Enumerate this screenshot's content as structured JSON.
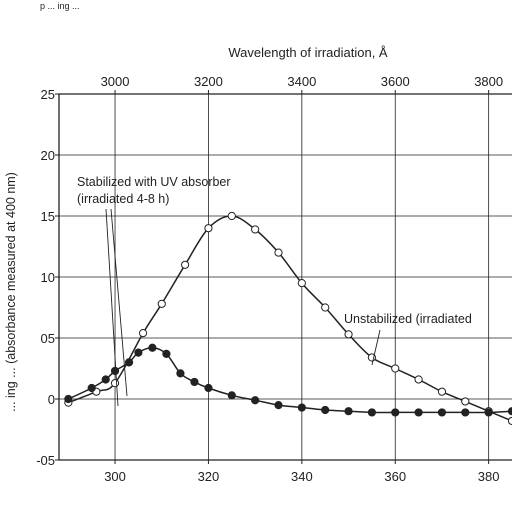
{
  "chart_data": {
    "type": "line",
    "top_caption": "p ... ing ...",
    "x2label": "Wavelength of irradiation, Å",
    "ylabel_partial": "... ing ... (absorbance measured at 400 nm)",
    "xlim": [
      288,
      385
    ],
    "ylim": [
      -5,
      25
    ],
    "x_ticks": [
      "300",
      "320",
      "340",
      "360",
      "380"
    ],
    "x_tick_values": [
      300,
      320,
      340,
      360,
      380
    ],
    "x2_ticks": [
      "3000",
      "3200",
      "3400",
      "3600",
      "3800"
    ],
    "x2_tick_values": [
      3000,
      3200,
      3400,
      3600,
      3800
    ],
    "y_ticks": [
      "25",
      "20",
      "15",
      "10",
      "05",
      "0",
      "-05"
    ],
    "y_tick_values": [
      25,
      20,
      15,
      10,
      5,
      0,
      -5
    ],
    "grid": true,
    "series": [
      {
        "name": "Unstabilized (irradiated",
        "marker": "open-circle",
        "x": [
          290,
          296,
          300,
          306,
          310,
          315,
          320,
          325,
          330,
          335,
          340,
          345,
          350,
          355,
          360,
          365,
          370,
          375,
          380,
          385
        ],
        "y": [
          -0.3,
          0.6,
          1.3,
          5.4,
          7.8,
          11.0,
          14.0,
          15.0,
          13.9,
          12.0,
          9.5,
          7.5,
          5.3,
          3.4,
          2.5,
          1.6,
          0.6,
          -0.2,
          -1.0,
          -1.8
        ]
      },
      {
        "name": "Stabilized with UV absorber (irradiated 4-8 h)",
        "marker": "filled-circle",
        "x": [
          290,
          295,
          298,
          300,
          303,
          305,
          308,
          311,
          314,
          317,
          320,
          325,
          330,
          335,
          340,
          345,
          350,
          355,
          360,
          365,
          370,
          375,
          380,
          385
        ],
        "y": [
          0.0,
          0.9,
          1.6,
          2.3,
          3.0,
          3.8,
          4.2,
          3.7,
          2.1,
          1.4,
          0.9,
          0.3,
          -0.1,
          -0.5,
          -0.7,
          -0.9,
          -1.0,
          -1.1,
          -1.1,
          -1.1,
          -1.1,
          -1.1,
          -1.1,
          -1.0
        ]
      }
    ],
    "annotations": [
      {
        "lines": [
          "Stabilized with UV absorber",
          "(irradiated 4-8 h)"
        ]
      },
      {
        "lines": [
          "Unstabilized (irradiated"
        ]
      }
    ]
  }
}
